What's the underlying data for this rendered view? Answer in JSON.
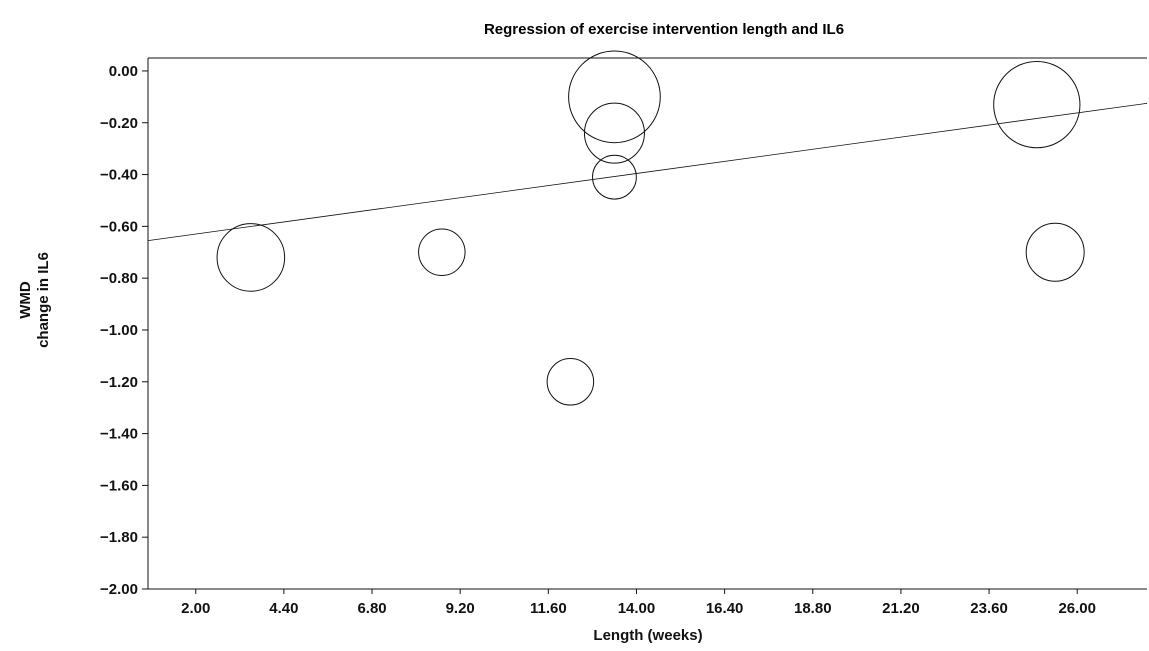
{
  "chart_data": {
    "type": "scatter",
    "title": "Regression of exercise intervention length and IL6",
    "xlabel": "Length (weeks)",
    "ylabel_lines": [
      "WMD",
      "change in IL6"
    ],
    "xlim": [
      0.7,
      27.9
    ],
    "ylim": [
      -2.0,
      0.05
    ],
    "x_ticks": [
      "2.00",
      "4.40",
      "6.80",
      "9.20",
      "11.60",
      "14.00",
      "16.40",
      "18.80",
      "21.20",
      "23.60",
      "26.00"
    ],
    "y_ticks": [
      "0.00",
      "-0.20",
      "-0.40",
      "-0.60",
      "-0.80",
      "-1.00",
      "-1.20",
      "-1.40",
      "-1.60",
      "-1.80",
      "-2.00"
    ],
    "points": [
      {
        "x": 3.5,
        "y": -0.72,
        "weight": 1.9
      },
      {
        "x": 8.7,
        "y": -0.7,
        "weight": 0.9
      },
      {
        "x": 12.2,
        "y": -1.2,
        "weight": 0.9
      },
      {
        "x": 13.4,
        "y": -0.41,
        "weight": 0.8
      },
      {
        "x": 13.4,
        "y": -0.24,
        "weight": 1.5
      },
      {
        "x": 13.4,
        "y": -0.1,
        "weight": 3.5
      },
      {
        "x": 24.9,
        "y": -0.13,
        "weight": 3.1
      },
      {
        "x": 25.4,
        "y": -0.7,
        "weight": 1.4
      }
    ],
    "regression_line": {
      "x": [
        0.7,
        27.9
      ],
      "y": [
        -0.655,
        -0.125
      ]
    },
    "grid": false
  }
}
